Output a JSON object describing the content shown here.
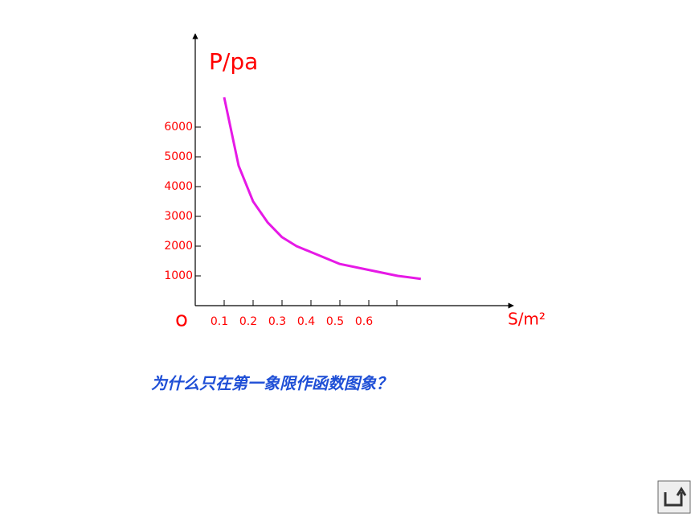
{
  "chart_data": {
    "type": "line",
    "y_label": "P/pa",
    "x_label": "S/m²",
    "origin_label": "o",
    "question": "为什么只在第一象限作函数图象？",
    "x": [
      0.1,
      0.15,
      0.2,
      0.25,
      0.3,
      0.35,
      0.4,
      0.5,
      0.6,
      0.7,
      0.78
    ],
    "series": [
      {
        "color": "#e619e6",
        "values": [
          7000,
          4700,
          3500,
          2800,
          2300,
          2000,
          1800,
          1400,
          1200,
          1000,
          900
        ]
      }
    ],
    "xlim": [
      0,
      1.1
    ],
    "ylim": [
      0,
      9000
    ],
    "xticks": [
      0.1,
      0.2,
      0.3,
      0.4,
      0.5,
      0.6
    ],
    "yticks": [
      1000,
      2000,
      3000,
      4000,
      5000,
      6000
    ]
  }
}
